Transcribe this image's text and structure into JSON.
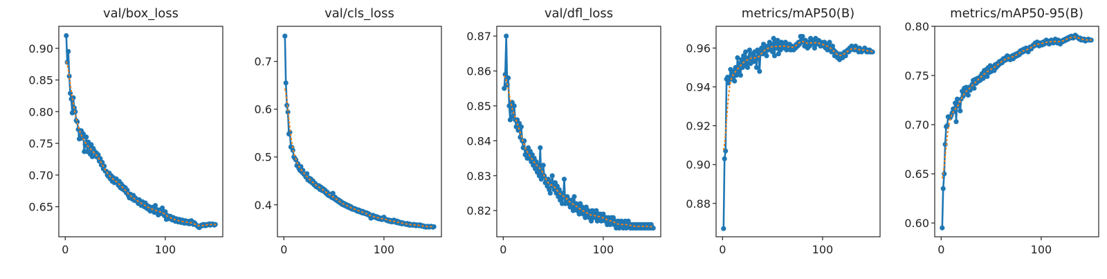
{
  "chart_data": [
    {
      "type": "line",
      "title": "val/box_loss",
      "x_start": 1,
      "xlim": [
        -6.45,
        157.45
      ],
      "ylim": [
        0.6026,
        0.9347
      ],
      "xticks": [
        0,
        100
      ],
      "xtick_labels": [
        "0",
        "100"
      ],
      "yticks": [
        0.65,
        0.7,
        0.75,
        0.8,
        0.85,
        0.9
      ],
      "ytick_labels": [
        "0.65",
        "0.70",
        "0.75",
        "0.80",
        "0.85",
        "0.90"
      ],
      "grid": false,
      "values": [
        0.92,
        0.878,
        0.895,
        0.856,
        0.829,
        0.82,
        0.798,
        0.822,
        0.806,
        0.8,
        0.786,
        0.784,
        0.772,
        0.757,
        0.762,
        0.77,
        0.758,
        0.765,
        0.737,
        0.748,
        0.76,
        0.737,
        0.752,
        0.745,
        0.733,
        0.748,
        0.729,
        0.742,
        0.738,
        0.73,
        0.735,
        0.728,
        0.732,
        0.722,
        0.726,
        0.716,
        0.72,
        0.71,
        0.714,
        0.706,
        0.706,
        0.7,
        0.698,
        0.703,
        0.694,
        0.699,
        0.69,
        0.696,
        0.688,
        0.692,
        0.694,
        0.688,
        0.684,
        0.69,
        0.68,
        0.686,
        0.678,
        0.682,
        0.676,
        0.68,
        0.672,
        0.676,
        0.668,
        0.664,
        0.67,
        0.666,
        0.662,
        0.668,
        0.66,
        0.664,
        0.662,
        0.658,
        0.655,
        0.661,
        0.656,
        0.652,
        0.658,
        0.653,
        0.65,
        0.656,
        0.648,
        0.652,
        0.646,
        0.65,
        0.643,
        0.647,
        0.649,
        0.644,
        0.641,
        0.652,
        0.646,
        0.64,
        0.637,
        0.645,
        0.639,
        0.643,
        0.648,
        0.641,
        0.636,
        0.642,
        0.63,
        0.636,
        0.634,
        0.631,
        0.635,
        0.632,
        0.629,
        0.633,
        0.63,
        0.627,
        0.631,
        0.628,
        0.626,
        0.63,
        0.627,
        0.625,
        0.629,
        0.626,
        0.624,
        0.628,
        0.626,
        0.624,
        0.627,
        0.623,
        0.625,
        0.628,
        0.624,
        0.622,
        0.625,
        0.623,
        0.621,
        0.62,
        0.618,
        0.617,
        0.619,
        0.621,
        0.62,
        0.622,
        0.621,
        0.62,
        0.622,
        0.621,
        0.622,
        0.623,
        0.621,
        0.622,
        0.623,
        0.622,
        0.621,
        0.622
      ]
    },
    {
      "type": "line",
      "title": "val/cls_loss",
      "x_start": 1,
      "xlim": [
        -6.45,
        157.45
      ],
      "ylim": [
        0.333,
        0.7735
      ],
      "xticks": [
        0,
        100
      ],
      "xtick_labels": [
        "0",
        "100"
      ],
      "yticks": [
        0.4,
        0.5,
        0.6,
        0.7
      ],
      "ytick_labels": [
        "0.4",
        "0.5",
        "0.6",
        "0.7"
      ],
      "grid": false,
      "values": [
        0.753,
        0.655,
        0.608,
        0.594,
        0.548,
        0.552,
        0.521,
        0.52,
        0.514,
        0.5,
        0.497,
        0.494,
        0.482,
        0.486,
        0.476,
        0.472,
        0.48,
        0.468,
        0.472,
        0.464,
        0.462,
        0.458,
        0.465,
        0.452,
        0.456,
        0.449,
        0.454,
        0.446,
        0.45,
        0.442,
        0.445,
        0.438,
        0.441,
        0.436,
        0.44,
        0.432,
        0.437,
        0.43,
        0.434,
        0.428,
        0.431,
        0.424,
        0.427,
        0.42,
        0.423,
        0.418,
        0.421,
        0.415,
        0.424,
        0.413,
        0.416,
        0.41,
        0.412,
        0.407,
        0.41,
        0.404,
        0.407,
        0.401,
        0.404,
        0.399,
        0.402,
        0.397,
        0.4,
        0.395,
        0.398,
        0.393,
        0.396,
        0.391,
        0.393,
        0.39,
        0.392,
        0.388,
        0.39,
        0.386,
        0.389,
        0.385,
        0.387,
        0.383,
        0.386,
        0.382,
        0.384,
        0.381,
        0.383,
        0.379,
        0.381,
        0.377,
        0.372,
        0.375,
        0.378,
        0.374,
        0.376,
        0.373,
        0.375,
        0.371,
        0.373,
        0.37,
        0.372,
        0.369,
        0.371,
        0.374,
        0.37,
        0.368,
        0.369,
        0.366,
        0.368,
        0.365,
        0.367,
        0.364,
        0.366,
        0.368,
        0.365,
        0.363,
        0.366,
        0.362,
        0.364,
        0.361,
        0.363,
        0.36,
        0.362,
        0.361,
        0.36,
        0.359,
        0.361,
        0.358,
        0.36,
        0.357,
        0.359,
        0.358,
        0.357,
        0.359,
        0.358,
        0.356,
        0.358,
        0.357,
        0.356,
        0.358,
        0.357,
        0.355,
        0.356,
        0.354,
        0.355,
        0.353,
        0.354,
        0.355,
        0.353,
        0.354,
        0.355,
        0.354,
        0.353,
        0.354
      ]
    },
    {
      "type": "line",
      "title": "val/dfl_loss",
      "x_start": 1,
      "xlim": [
        -6.45,
        157.45
      ],
      "ylim": [
        0.8125,
        0.8728
      ],
      "xticks": [
        0,
        100
      ],
      "xtick_labels": [
        "0",
        "100"
      ],
      "yticks": [
        0.82,
        0.83,
        0.84,
        0.85,
        0.86,
        0.87
      ],
      "ytick_labels": [
        "0.82",
        "0.83",
        "0.84",
        "0.85",
        "0.86",
        "0.87"
      ],
      "grid": false,
      "values": [
        0.855,
        0.859,
        0.87,
        0.856,
        0.858,
        0.85,
        0.846,
        0.849,
        0.851,
        0.847,
        0.85,
        0.846,
        0.844,
        0.846,
        0.843,
        0.845,
        0.841,
        0.844,
        0.84,
        0.838,
        0.84,
        0.836,
        0.837,
        0.835,
        0.838,
        0.835,
        0.837,
        0.834,
        0.836,
        0.833,
        0.835,
        0.832,
        0.834,
        0.831,
        0.833,
        0.83,
        0.838,
        0.829,
        0.831,
        0.833,
        0.83,
        0.828,
        0.829,
        0.827,
        0.829,
        0.826,
        0.825,
        0.828,
        0.83,
        0.827,
        0.826,
        0.828,
        0.825,
        0.827,
        0.824,
        0.826,
        0.823,
        0.825,
        0.822,
        0.824,
        0.829,
        0.822,
        0.823,
        0.824,
        0.822,
        0.823,
        0.821,
        0.823,
        0.822,
        0.82,
        0.824,
        0.821,
        0.822,
        0.82,
        0.821,
        0.819,
        0.822,
        0.82,
        0.821,
        0.819,
        0.82,
        0.818,
        0.821,
        0.819,
        0.82,
        0.818,
        0.819,
        0.817,
        0.82,
        0.818,
        0.819,
        0.818,
        0.82,
        0.817,
        0.819,
        0.818,
        0.819,
        0.817,
        0.818,
        0.819,
        0.818,
        0.817,
        0.818,
        0.816,
        0.818,
        0.817,
        0.816,
        0.818,
        0.817,
        0.818,
        0.816,
        0.817,
        0.815,
        0.816,
        0.817,
        0.815,
        0.816,
        0.817,
        0.816,
        0.815,
        0.816,
        0.817,
        0.815,
        0.816,
        0.817,
        0.816,
        0.815,
        0.816,
        0.815,
        0.816,
        0.815,
        0.816,
        0.815,
        0.816,
        0.815,
        0.816,
        0.815,
        0.816,
        0.815,
        0.816,
        0.815,
        0.816,
        0.815,
        0.816,
        0.815,
        0.816,
        0.815,
        0.816,
        0.815,
        0.815
      ]
    },
    {
      "type": "line",
      "title": "metrics/mAP50(B)",
      "x_start": 1,
      "xlim": [
        -6.45,
        157.45
      ],
      "ylim": [
        0.8628,
        0.9712
      ],
      "xticks": [
        0,
        100
      ],
      "xtick_labels": [
        "0",
        "100"
      ],
      "yticks": [
        0.88,
        0.9,
        0.92,
        0.94,
        0.96
      ],
      "ytick_labels": [
        "0.88",
        "0.90",
        "0.92",
        "0.94",
        "0.96"
      ],
      "grid": false,
      "values": [
        0.867,
        0.903,
        0.907,
        0.944,
        0.945,
        0.942,
        0.944,
        0.949,
        0.944,
        0.946,
        0.948,
        0.943,
        0.95,
        0.946,
        0.955,
        0.948,
        0.952,
        0.946,
        0.954,
        0.95,
        0.956,
        0.951,
        0.958,
        0.953,
        0.95,
        0.955,
        0.959,
        0.952,
        0.954,
        0.957,
        0.953,
        0.958,
        0.955,
        0.95,
        0.959,
        0.956,
        0.948,
        0.958,
        0.96,
        0.957,
        0.962,
        0.958,
        0.96,
        0.956,
        0.961,
        0.959,
        0.963,
        0.96,
        0.962,
        0.958,
        0.965,
        0.956,
        0.963,
        0.96,
        0.964,
        0.957,
        0.962,
        0.959,
        0.963,
        0.961,
        0.962,
        0.96,
        0.963,
        0.959,
        0.961,
        0.96,
        0.962,
        0.959,
        0.961,
        0.96,
        0.959,
        0.961,
        0.96,
        0.962,
        0.961,
        0.963,
        0.962,
        0.966,
        0.964,
        0.966,
        0.963,
        0.961,
        0.964,
        0.962,
        0.96,
        0.963,
        0.961,
        0.965,
        0.962,
        0.964,
        0.963,
        0.96,
        0.965,
        0.962,
        0.963,
        0.964,
        0.962,
        0.961,
        0.963,
        0.962,
        0.961,
        0.963,
        0.96,
        0.962,
        0.959,
        0.961,
        0.963,
        0.96,
        0.958,
        0.961,
        0.959,
        0.956,
        0.958,
        0.957,
        0.955,
        0.957,
        0.954,
        0.956,
        0.957,
        0.955,
        0.957,
        0.958,
        0.956,
        0.958,
        0.959,
        0.958,
        0.96,
        0.959,
        0.961,
        0.96,
        0.96,
        0.959,
        0.961,
        0.96,
        0.959,
        0.958,
        0.96,
        0.959,
        0.958,
        0.959,
        0.959,
        0.96,
        0.959,
        0.958,
        0.959,
        0.958,
        0.959,
        0.958,
        0.958,
        0.958
      ]
    },
    {
      "type": "line",
      "title": "metrics/mAP50-95(B)",
      "x_start": 1,
      "xlim": [
        -6.45,
        157.45
      ],
      "ylim": [
        0.586,
        0.8
      ],
      "xticks": [
        0,
        100
      ],
      "xtick_labels": [
        "0",
        "100"
      ],
      "yticks": [
        0.6,
        0.65,
        0.7,
        0.75,
        0.8
      ],
      "ytick_labels": [
        "0.60",
        "0.65",
        "0.70",
        "0.75",
        "0.80"
      ],
      "grid": false,
      "values": [
        0.595,
        0.635,
        0.65,
        0.68,
        0.698,
        0.699,
        0.708,
        0.708,
        0.707,
        0.709,
        0.712,
        0.716,
        0.714,
        0.722,
        0.703,
        0.726,
        0.719,
        0.721,
        0.714,
        0.726,
        0.734,
        0.729,
        0.737,
        0.732,
        0.738,
        0.734,
        0.73,
        0.738,
        0.735,
        0.739,
        0.741,
        0.745,
        0.737,
        0.746,
        0.742,
        0.747,
        0.744,
        0.748,
        0.745,
        0.75,
        0.752,
        0.747,
        0.755,
        0.751,
        0.756,
        0.749,
        0.758,
        0.753,
        0.76,
        0.754,
        0.757,
        0.759,
        0.755,
        0.761,
        0.758,
        0.762,
        0.76,
        0.764,
        0.762,
        0.765,
        0.763,
        0.767,
        0.765,
        0.768,
        0.766,
        0.77,
        0.767,
        0.769,
        0.766,
        0.768,
        0.77,
        0.767,
        0.771,
        0.769,
        0.772,
        0.77,
        0.773,
        0.771,
        0.775,
        0.773,
        0.776,
        0.774,
        0.777,
        0.775,
        0.778,
        0.776,
        0.774,
        0.777,
        0.779,
        0.777,
        0.779,
        0.781,
        0.78,
        0.783,
        0.781,
        0.784,
        0.782,
        0.78,
        0.783,
        0.782,
        0.781,
        0.784,
        0.782,
        0.785,
        0.786,
        0.783,
        0.785,
        0.782,
        0.784,
        0.786,
        0.784,
        0.783,
        0.785,
        0.787,
        0.785,
        0.783,
        0.786,
        0.784,
        0.782,
        0.785,
        0.784,
        0.786,
        0.785,
        0.787,
        0.786,
        0.788,
        0.787,
        0.789,
        0.788,
        0.79,
        0.789,
        0.788,
        0.79,
        0.791,
        0.79,
        0.789,
        0.788,
        0.787,
        0.788,
        0.786,
        0.787,
        0.786,
        0.787,
        0.785,
        0.786,
        0.786,
        0.787,
        0.786,
        0.786,
        0.786
      ]
    }
  ],
  "colors": {
    "results": "#1f77b4",
    "smooth": "#ff7f0e"
  }
}
